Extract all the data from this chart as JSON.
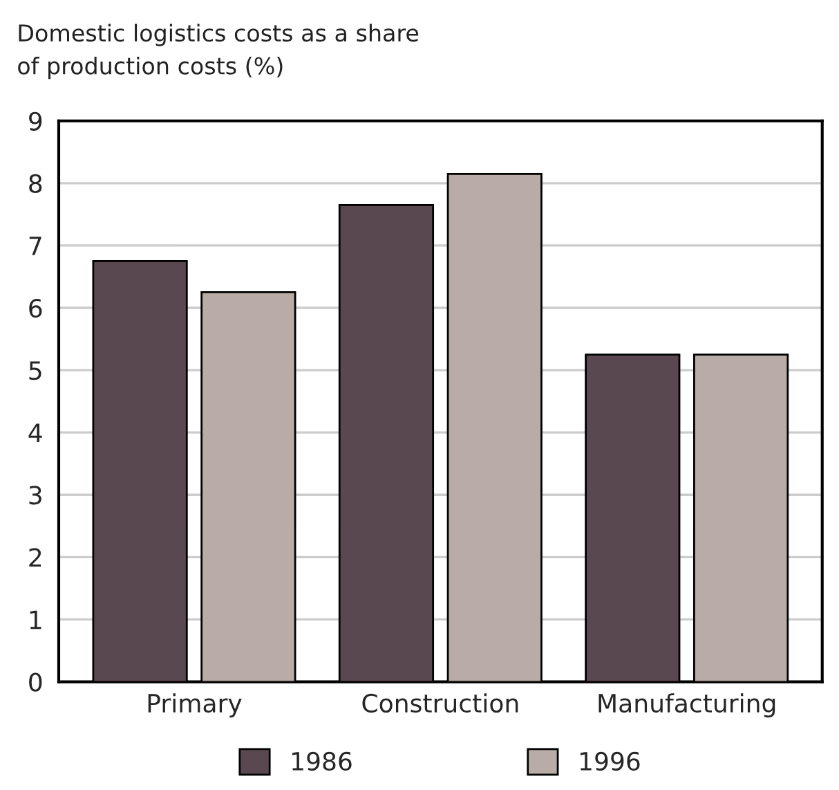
{
  "chart_data": {
    "type": "bar",
    "title": "Domestic logistics costs as a share\nof production costs (%)",
    "categories": [
      "Primary",
      "Construction",
      "Manufacturing"
    ],
    "series": [
      {
        "name": "1986",
        "color": "#5a4850",
        "values": [
          6.75,
          7.65,
          5.25
        ]
      },
      {
        "name": "1996",
        "color": "#b9aca6",
        "values": [
          6.25,
          8.15,
          5.25
        ]
      }
    ],
    "ylim": [
      0,
      9
    ],
    "yticks": [
      0,
      1,
      2,
      3,
      4,
      5,
      6,
      7,
      8,
      9
    ],
    "grid": "y",
    "legend": "bottom"
  }
}
